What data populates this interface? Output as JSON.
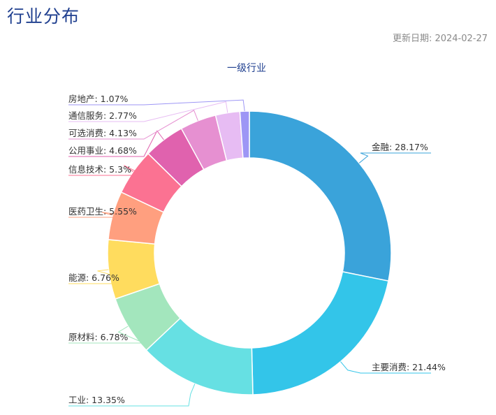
{
  "header": {
    "title": "行业分布",
    "update_date": "更新日期: 2024-02-27"
  },
  "chart_data": {
    "type": "pie",
    "subtype": "donut",
    "title": "一级行业",
    "start_angle_deg": 0,
    "direction": "clockwise",
    "slices": [
      {
        "name": "金融",
        "value": 28.17,
        "label": "金融: 28.17%",
        "color": "#3aa3da",
        "side": "right"
      },
      {
        "name": "主要消费",
        "value": 21.44,
        "label": "主要消费: 21.44%",
        "color": "#33c5e9",
        "side": "right"
      },
      {
        "name": "工业",
        "value": 13.35,
        "label": "工业: 13.35%",
        "color": "#66e0e3",
        "side": "left"
      },
      {
        "name": "原材料",
        "value": 6.78,
        "label": "原材料: 6.78%",
        "color": "#a3e6bd",
        "side": "left"
      },
      {
        "name": "能源",
        "value": 6.76,
        "label": "能源: 6.76%",
        "color": "#ffdc5e",
        "side": "left"
      },
      {
        "name": "医药卫生",
        "value": 5.55,
        "label": "医药卫生: 5.55%",
        "color": "#ff9f7f",
        "side": "left"
      },
      {
        "name": "信息技术",
        "value": 5.3,
        "label": "信息技术: 5.3%",
        "color": "#fb7292",
        "side": "left"
      },
      {
        "name": "公用事业",
        "value": 4.68,
        "label": "公用事业: 4.68%",
        "color": "#e062ae",
        "side": "left"
      },
      {
        "name": "可选消费",
        "value": 4.13,
        "label": "可选消费: 4.13%",
        "color": "#e690d1",
        "side": "left"
      },
      {
        "name": "通信服务",
        "value": 2.77,
        "label": "通信服务: 2.77%",
        "color": "#e7bcf3",
        "side": "left"
      },
      {
        "name": "房地产",
        "value": 1.07,
        "label": "房地产: 1.07%",
        "color": "#9d96f5",
        "side": "left"
      }
    ]
  }
}
